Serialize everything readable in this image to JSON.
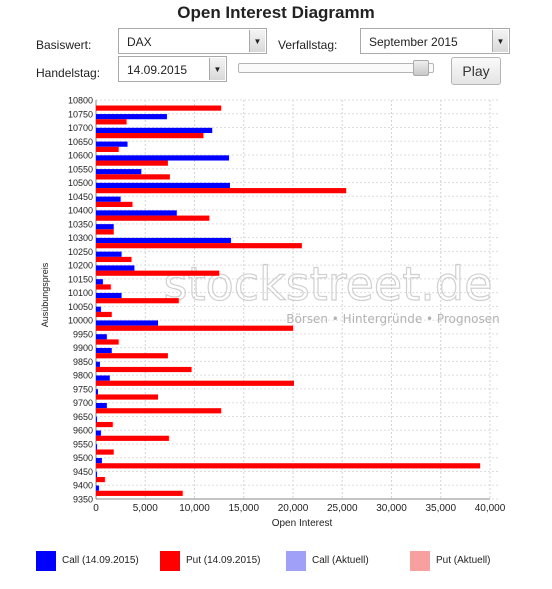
{
  "title": "Open Interest Diagramm",
  "controls": {
    "basiswert_label": "Basiswert:",
    "basiswert_value": "DAX",
    "verfallstag_label": "Verfallstag:",
    "verfallstag_value": "September 2015",
    "handelstag_label": "Handelstag:",
    "handelstag_value": "14.09.2015",
    "slider_position": 0.97,
    "play_label": "Play"
  },
  "watermark": {
    "brand": "stockstreet.de",
    "tagline": "Börsen • Hintergründe • Prognosen"
  },
  "legend": [
    {
      "label": "Call (14.09.2015)",
      "color": "#0000ff"
    },
    {
      "label": "Put (14.09.2015)",
      "color": "#ff0000"
    },
    {
      "label": "Call (Aktuell)",
      "color": "#a0a0f8"
    },
    {
      "label": "Put (Aktuell)",
      "color": "#f8a0a0"
    }
  ],
  "chart_data": {
    "type": "bar",
    "orientation": "horizontal",
    "categories": [
      "10800",
      "10750",
      "10700",
      "10650",
      "10600",
      "10550",
      "10500",
      "10450",
      "10400",
      "10350",
      "10300",
      "10250",
      "10200",
      "10150",
      "10100",
      "10050",
      "10000",
      "9950",
      "9900",
      "9850",
      "9800",
      "9750",
      "9700",
      "9650",
      "9600",
      "9550",
      "9500",
      "9450",
      "9400",
      "9350"
    ],
    "series": [
      {
        "name": "Call (14.09.2015)",
        "color": "#0000ff",
        "values": [
          0,
          7200,
          11800,
          3200,
          13500,
          4600,
          13600,
          2500,
          8200,
          1800,
          13700,
          2600,
          3900,
          700,
          2600,
          500,
          6300,
          1100,
          1600,
          400,
          1400,
          200,
          1100,
          100,
          500,
          100,
          600,
          100,
          300,
          0
        ]
      },
      {
        "name": "Put (14.09.2015)",
        "color": "#ff0000",
        "values": [
          12700,
          3100,
          10900,
          2300,
          7300,
          7500,
          25400,
          3700,
          11500,
          1800,
          20900,
          3600,
          12500,
          1500,
          8400,
          1600,
          20000,
          2300,
          7300,
          9700,
          20100,
          6300,
          12700,
          1700,
          7400,
          1800,
          39000,
          900,
          8800,
          0
        ]
      }
    ],
    "xlabel": "Open Interest",
    "ylabel": "Ausübungspreis",
    "xlim": [
      0,
      40000
    ],
    "xticks": [
      "0",
      "5,000",
      "10,000",
      "15,000",
      "20,000",
      "25,000",
      "30,000",
      "35,000",
      "40,000"
    ],
    "grid": true
  }
}
